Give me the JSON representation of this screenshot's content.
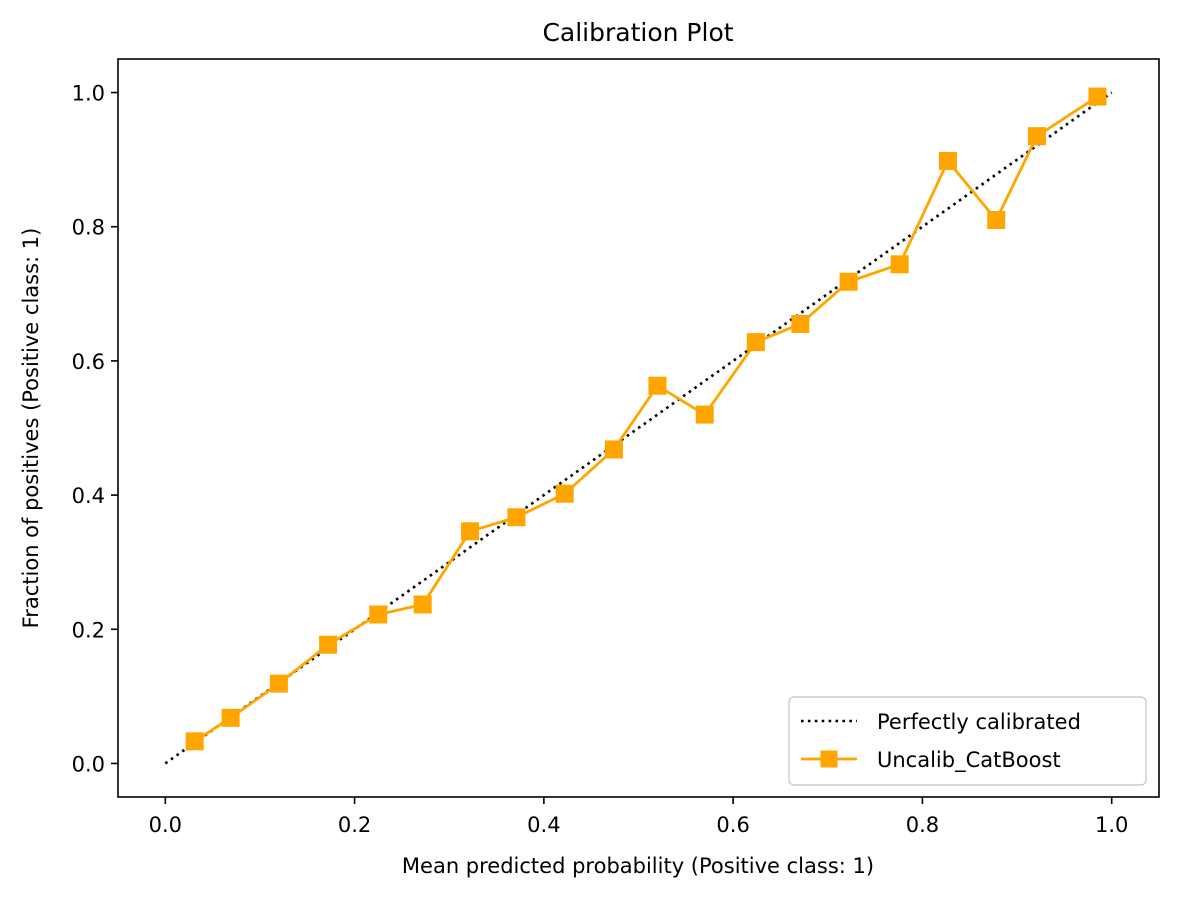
{
  "chart_data": {
    "type": "line",
    "title": "Calibration Plot",
    "xlabel": "Mean predicted probability (Positive class: 1)",
    "ylabel": "Fraction of positives (Positive class: 1)",
    "xlim": [
      -0.05,
      1.05
    ],
    "ylim": [
      -0.05,
      1.05
    ],
    "xticks": [
      0.0,
      0.2,
      0.4,
      0.6,
      0.8,
      1.0
    ],
    "xtick_labels": [
      "0.0",
      "0.2",
      "0.4",
      "0.6",
      "0.8",
      "1.0"
    ],
    "yticks": [
      0.0,
      0.2,
      0.4,
      0.6,
      0.8,
      1.0
    ],
    "ytick_labels": [
      "0.0",
      "0.2",
      "0.4",
      "0.6",
      "0.8",
      "1.0"
    ],
    "grid": false,
    "legend_position": "lower-right",
    "series": [
      {
        "name": "Perfectly calibrated",
        "style": "dotted",
        "color": "#000000",
        "marker": "none",
        "x": [
          0.0,
          1.0
        ],
        "y": [
          0.0,
          1.0
        ]
      },
      {
        "name": "Uncalib_CatBoost",
        "style": "solid",
        "color": "#FFA500",
        "marker": "square",
        "x": [
          0.031,
          0.069,
          0.12,
          0.172,
          0.225,
          0.272,
          0.322,
          0.371,
          0.422,
          0.474,
          0.52,
          0.57,
          0.624,
          0.671,
          0.722,
          0.776,
          0.827,
          0.878,
          0.921,
          0.985
        ],
        "y": [
          0.033,
          0.068,
          0.119,
          0.177,
          0.222,
          0.237,
          0.346,
          0.367,
          0.402,
          0.468,
          0.563,
          0.52,
          0.628,
          0.655,
          0.718,
          0.744,
          0.898,
          0.81,
          0.935,
          0.994
        ]
      }
    ]
  }
}
